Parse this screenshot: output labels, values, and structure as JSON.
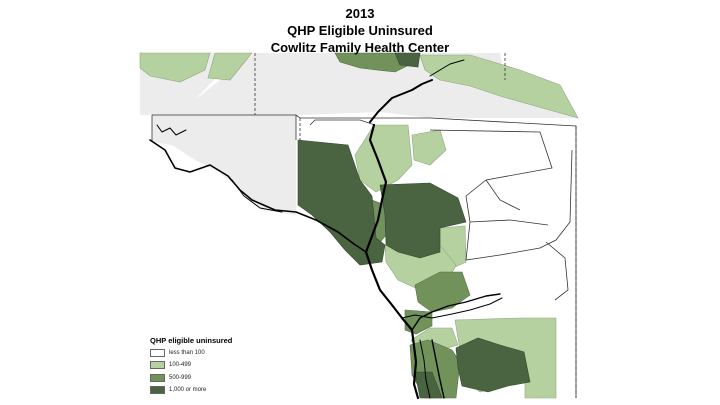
{
  "title": {
    "year": "2013",
    "subtitle": "QHP Eligible Uninsured",
    "organization": "Cowlitz Family Health Center"
  },
  "legend": {
    "title": "QHP eligible uninsured",
    "items": [
      {
        "label": "less than 100",
        "color": "#ffffff"
      },
      {
        "label": "100-499",
        "color": "#b5d1a0"
      },
      {
        "label": "500-999",
        "color": "#72925c"
      },
      {
        "label": "1,000 or more",
        "color": "#4a6340"
      }
    ]
  },
  "colors": {
    "outside_region": "#ececec",
    "boundary": "#333333",
    "river": "#000000"
  }
}
